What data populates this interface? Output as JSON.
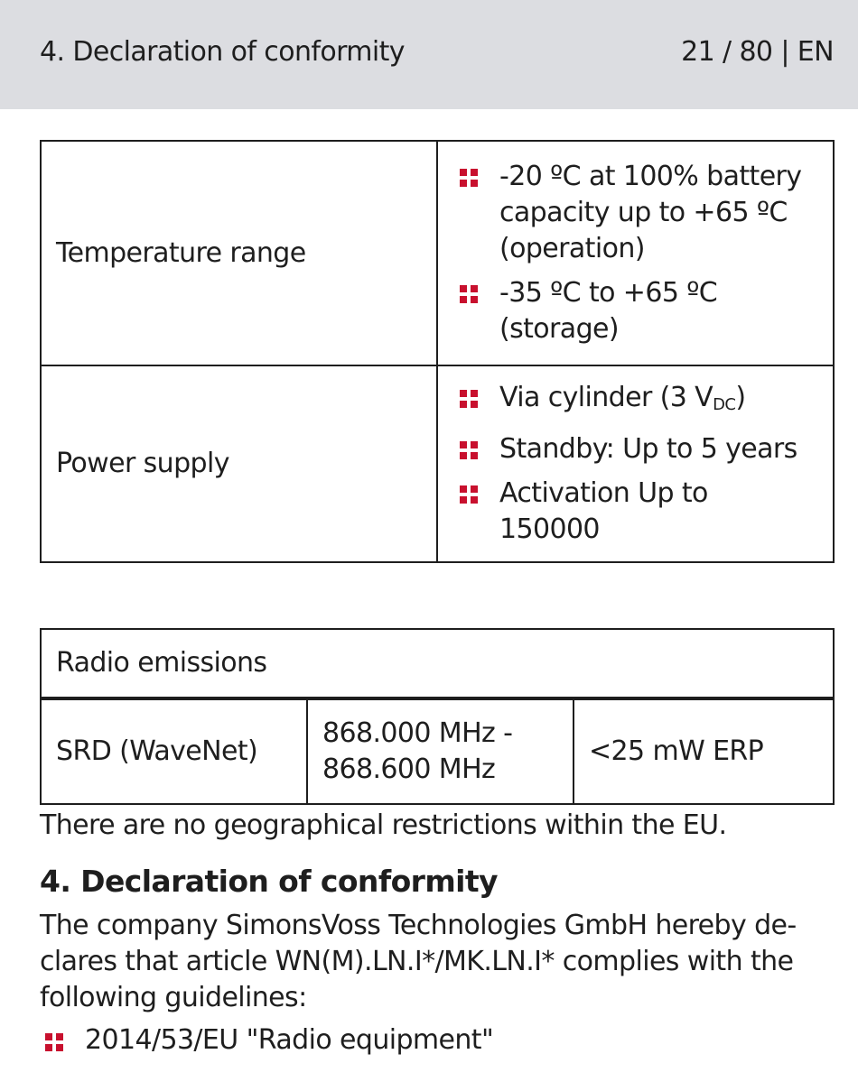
{
  "header": {
    "section": "4. Declaration of conformity",
    "page": "21 / 80 | EN"
  },
  "specs_table": {
    "rows": [
      {
        "label": "Temperature range",
        "items": [
          "-20 ºC at 100% battery capacity up to +65 ºC (operation)",
          "-35 ºC to +65 ºC (storage)"
        ]
      },
      {
        "label": "Power supply",
        "items": [
          "Via cylinder (3 V",
          "Standby: Up to 5 years",
          "Activation Up to 150000"
        ],
        "supply_unit_subscript": "DC",
        "supply_suffix": ")"
      }
    ]
  },
  "radio_table": {
    "title": "Radio emissions",
    "row": {
      "name": "SRD (WaveNet)",
      "frequency": "868.000 MHz - 868.600 MHz",
      "power": "<25 mW ERP"
    }
  },
  "note": "There are no geographical restrictions within the EU.",
  "section": {
    "heading": "4. Declaration of conformity",
    "paragraph": "The company SimonsVoss Technologies GmbH hereby de-clares that article WN(M).LN.I*/MK.LN.I* complies with the following guidelines:",
    "guidelines": [
      "2014/53/EU \"Radio equipment\""
    ]
  },
  "colors": {
    "bullet": "#c8102e",
    "header_bg": "#dcdde1"
  },
  "icons": {
    "bullet": "red-four-square-bullet-icon"
  }
}
